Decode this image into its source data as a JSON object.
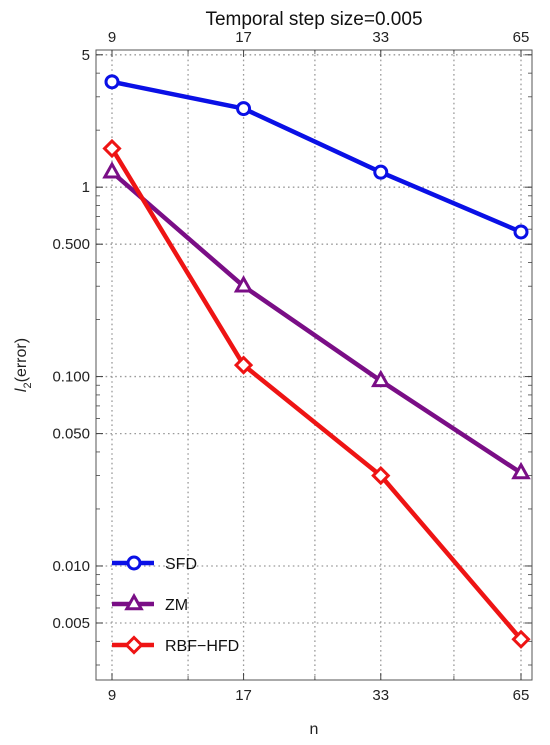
{
  "chart_data": {
    "type": "line",
    "title": "Temporal step size=0.005",
    "xlabel": "n",
    "ylabel_main": "l",
    "ylabel_sub": "2",
    "ylabel_rest": "(error)",
    "x": [
      9,
      17,
      33,
      65
    ],
    "x_tick_labels": [
      "9",
      "17",
      "33",
      "65"
    ],
    "y_scale": "log",
    "ylim": [
      0.0025,
      5.3
    ],
    "y_ticks": [
      {
        "value": 5,
        "label": "5"
      },
      {
        "value": 1,
        "label": "1"
      },
      {
        "value": 0.5,
        "label": "0.500"
      },
      {
        "value": 0.1,
        "label": "0.100"
      },
      {
        "value": 0.05,
        "label": "0.050"
      },
      {
        "value": 0.01,
        "label": "0.010"
      },
      {
        "value": 0.005,
        "label": "0.005"
      }
    ],
    "grid": true,
    "legend_position": "bottom-left",
    "series": [
      {
        "name": "SFD",
        "color": "#0a10e6",
        "marker": "circle",
        "values": [
          3.6,
          2.6,
          1.2,
          0.58
        ]
      },
      {
        "name": "ZM",
        "color": "#7a0e86",
        "marker": "triangle",
        "values": [
          1.2,
          0.3,
          0.095,
          0.031
        ]
      },
      {
        "name": "RBF−HFD",
        "color": "#ee1414",
        "marker": "diamond",
        "values": [
          1.6,
          0.115,
          0.03,
          0.0041
        ]
      }
    ]
  }
}
